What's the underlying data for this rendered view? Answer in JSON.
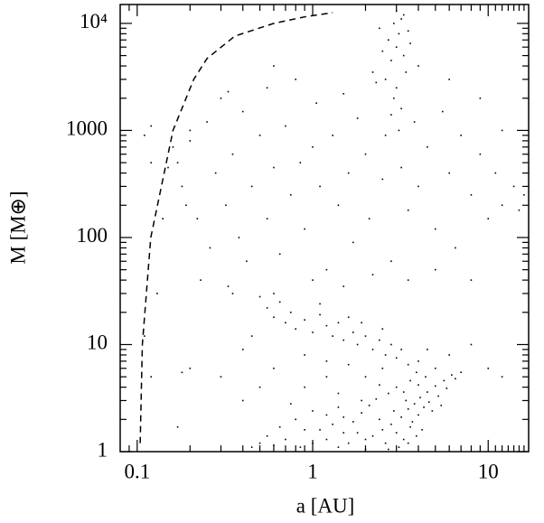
{
  "chart_data": {
    "type": "scatter",
    "x_label": "a [AU]",
    "y_label": "M [M⊕]",
    "xscale": "log",
    "yscale": "log",
    "xlim": [
      0.08,
      17
    ],
    "ylim": [
      1,
      15000
    ],
    "xticks": [
      0.1,
      1,
      10
    ],
    "yticks": [
      1,
      10,
      100,
      1000,
      {
        "value": 10000,
        "label": "10⁴"
      }
    ],
    "xminorticks": [
      0.09,
      0.2,
      0.3,
      0.4,
      0.5,
      0.6,
      0.7,
      0.8,
      0.9,
      2,
      3,
      4,
      5,
      6,
      7,
      8,
      9,
      11,
      12,
      13,
      14,
      15,
      16
    ],
    "yminorticks": [
      2,
      3,
      4,
      5,
      6,
      7,
      8,
      9,
      20,
      30,
      40,
      50,
      60,
      70,
      80,
      90,
      200,
      300,
      400,
      500,
      600,
      700,
      800,
      900,
      2000,
      3000,
      4000,
      5000,
      6000,
      7000,
      8000,
      9000
    ],
    "series": [
      {
        "type": "scatter",
        "color": "#000000",
        "x": [
          3.2,
          3.5,
          3.8,
          4.1,
          4.5,
          5.0,
          5.6,
          6.2,
          2.8,
          3.0,
          3.3,
          3.7,
          4.0,
          4.3,
          2.5,
          2.2,
          2.6,
          3.1,
          3.9,
          4.6,
          5.2,
          2.9,
          3.4,
          3.6,
          2.4,
          2.0,
          1.8,
          1.6,
          1.4,
          1.2,
          1.0,
          0.85,
          0.7,
          0.6,
          0.55,
          1.1,
          1.3,
          1.5,
          1.7,
          1.9,
          2.1,
          2.3,
          2.7,
          3.0,
          3.3,
          4.8,
          5.4,
          4.2,
          3.5,
          2.7,
          2.0,
          1.5,
          1.2,
          0.9,
          0.8,
          0.65,
          5.8,
          6.5,
          4.0,
          3.6,
          2.4,
          1.9,
          1.4,
          1.0,
          0.75,
          0.5,
          0.45,
          3.9,
          4.4,
          7.0,
          0.55,
          0.6,
          0.65,
          0.7,
          0.75,
          0.8,
          0.9,
          1.0,
          1.1,
          1.2,
          1.3,
          1.4,
          1.5,
          1.7,
          1.8,
          2.0,
          2.2,
          2.4,
          2.6,
          2.8,
          3.0,
          3.2,
          3.5,
          2.5,
          1.9,
          1.6,
          0.5,
          0.45,
          0.4,
          0.35,
          0.9,
          1.2,
          4.0,
          5.0,
          1.1,
          0.3,
          0.6,
          0.9,
          1.2,
          1.6,
          2.0,
          2.5,
          1.4,
          0.5,
          4.5,
          6,
          8,
          10,
          12,
          0.2,
          0.4,
          0.17,
          0.18,
          0.2,
          0.22,
          0.25,
          0.26,
          0.28,
          0.3,
          0.32,
          0.35,
          0.38,
          0.4,
          0.42,
          0.45,
          0.5,
          0.55,
          0.55,
          0.6,
          0.65,
          0.7,
          0.75,
          0.8,
          0.85,
          0.9,
          1.0,
          1.05,
          1.1,
          1.2,
          1.3,
          1.4,
          1.5,
          1.6,
          1.7,
          1.8,
          2.0,
          2.1,
          2.3,
          2.5,
          2.6,
          2.8,
          3.2,
          3.5,
          3.8,
          4.0,
          4.5,
          5.0,
          5.5,
          6.0,
          6.5,
          7.0,
          8.0,
          9.0,
          10,
          11,
          12,
          14,
          15,
          16,
          0.23,
          0.33,
          0.6,
          1.0,
          1.5,
          2.2,
          3.5,
          5,
          8,
          0.19,
          0.2,
          0.15,
          0.16,
          12,
          9,
          6,
          2.6,
          2.8,
          3.0,
          3.1,
          2.9,
          3.2,
          2.7,
          3.3,
          3.4,
          2.5,
          3.0,
          2.9,
          3.2,
          3.1,
          2.8,
          3.5,
          3.6,
          2.4,
          3.0,
          3.3,
          4.0,
          2.2,
          0.11,
          0.12,
          0.13,
          0.14,
          0.11,
          0.12,
          0.12,
          0.18,
          0.17,
          0.33,
          0.6
        ],
        "values": [
          2.1,
          2.5,
          2.8,
          3.2,
          3.6,
          4.1,
          4.6,
          5.2,
          1.8,
          1.5,
          1.3,
          1.9,
          2.2,
          2.6,
          1.6,
          1.4,
          1.2,
          1.1,
          1.4,
          2.9,
          3.3,
          2.4,
          3.0,
          1.7,
          2.0,
          1.3,
          1.5,
          1.2,
          1.1,
          1.3,
          1.2,
          1.1,
          1.3,
          1.15,
          1.4,
          1.6,
          1.8,
          2.1,
          1.9,
          2.3,
          2.7,
          3.1,
          3.5,
          4.0,
          3.6,
          2.4,
          2.7,
          1.6,
          1.2,
          1.05,
          1.05,
          1.5,
          2.2,
          1.6,
          2.0,
          1.7,
          3.9,
          4.8,
          4.2,
          4.6,
          4.2,
          3.0,
          2.6,
          2.4,
          2.8,
          1.2,
          1.1,
          5.5,
          5.0,
          5.5,
          22,
          18,
          25,
          16,
          20,
          14,
          17,
          13,
          19,
          15,
          12,
          16,
          11,
          13,
          10,
          12,
          9,
          11,
          8,
          10,
          7.5,
          9,
          6.5,
          14,
          16,
          18,
          28,
          12,
          9,
          30,
          8,
          7,
          7,
          6,
          24,
          5,
          6,
          4,
          5,
          6.5,
          5,
          6,
          3.5,
          4,
          9,
          8,
          10,
          6,
          5,
          6,
          3,
          500,
          300,
          800,
          150,
          1200,
          80,
          400,
          2000,
          200,
          600,
          100,
          1500,
          60,
          300,
          900,
          2500,
          150,
          450,
          70,
          1100,
          250,
          3000,
          500,
          120,
          700,
          1800,
          300,
          50,
          900,
          200,
          2200,
          400,
          90,
          1300,
          600,
          150,
          2800,
          350,
          900,
          60,
          450,
          180,
          1200,
          300,
          700,
          120,
          1500,
          400,
          80,
          900,
          250,
          600,
          150,
          400,
          200,
          300,
          180,
          250,
          40,
          35,
          30,
          40,
          35,
          45,
          40,
          50,
          40,
          200,
          1000,
          450,
          700,
          1000,
          2000,
          3000,
          3000,
          4500,
          6000,
          8000,
          10000,
          11000,
          7000,
          5000,
          3500,
          5500,
          2500,
          2000,
          1600,
          1000,
          1400,
          8500,
          6500,
          9000,
          13000,
          12000,
          4000,
          3500,
          12,
          5,
          30,
          150,
          900,
          1100,
          500,
          5.5,
          1.7,
          2300,
          4000
        ]
      },
      {
        "type": "line",
        "color": "#000000",
        "dash": true,
        "x": [
          0.104,
          0.107,
          0.1195,
          0.16,
          0.21,
          0.25,
          0.36,
          0.6,
          0.9,
          1.3
        ],
        "values": [
          1.2,
          10,
          100,
          1000,
          3000,
          4700,
          7600,
          10000,
          11500,
          12600
        ]
      }
    ]
  }
}
